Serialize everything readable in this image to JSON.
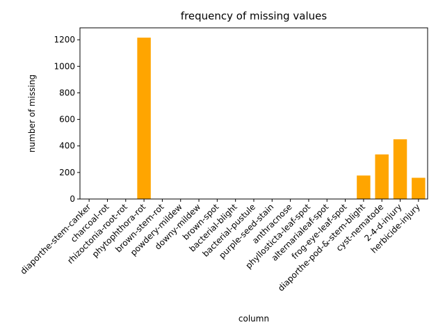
{
  "chart_data": {
    "type": "bar",
    "title": "frequency of missing values",
    "xlabel": "column",
    "ylabel": "number of missing",
    "ylim": [
      0,
      1290
    ],
    "yticks": [
      0,
      200,
      400,
      600,
      800,
      1000,
      1200
    ],
    "bar_color": "#ffa500",
    "grid": false,
    "categories": [
      "diaporthe-stem-canker",
      "charcoal-rot",
      "rhizoctonia-root-rot",
      "phytophthora-rot",
      "brown-stem-rot",
      "powdery-mildew",
      "downy-mildew",
      "brown-spot",
      "bacterial-blight",
      "bacterial-pustule",
      "purple-seed-stain",
      "anthracnose",
      "phyllosticta-leaf-spot",
      "alternarialeaf-spot",
      "frog-eye-leaf-spot",
      "diaporthe-pod-&-stem-blight",
      "cyst-nematode",
      "2-4-d-injury",
      "herbicide-injury"
    ],
    "values": [
      0,
      0,
      0,
      1216,
      0,
      0,
      0,
      0,
      0,
      0,
      0,
      0,
      0,
      0,
      0,
      177,
      336,
      450,
      160
    ]
  }
}
